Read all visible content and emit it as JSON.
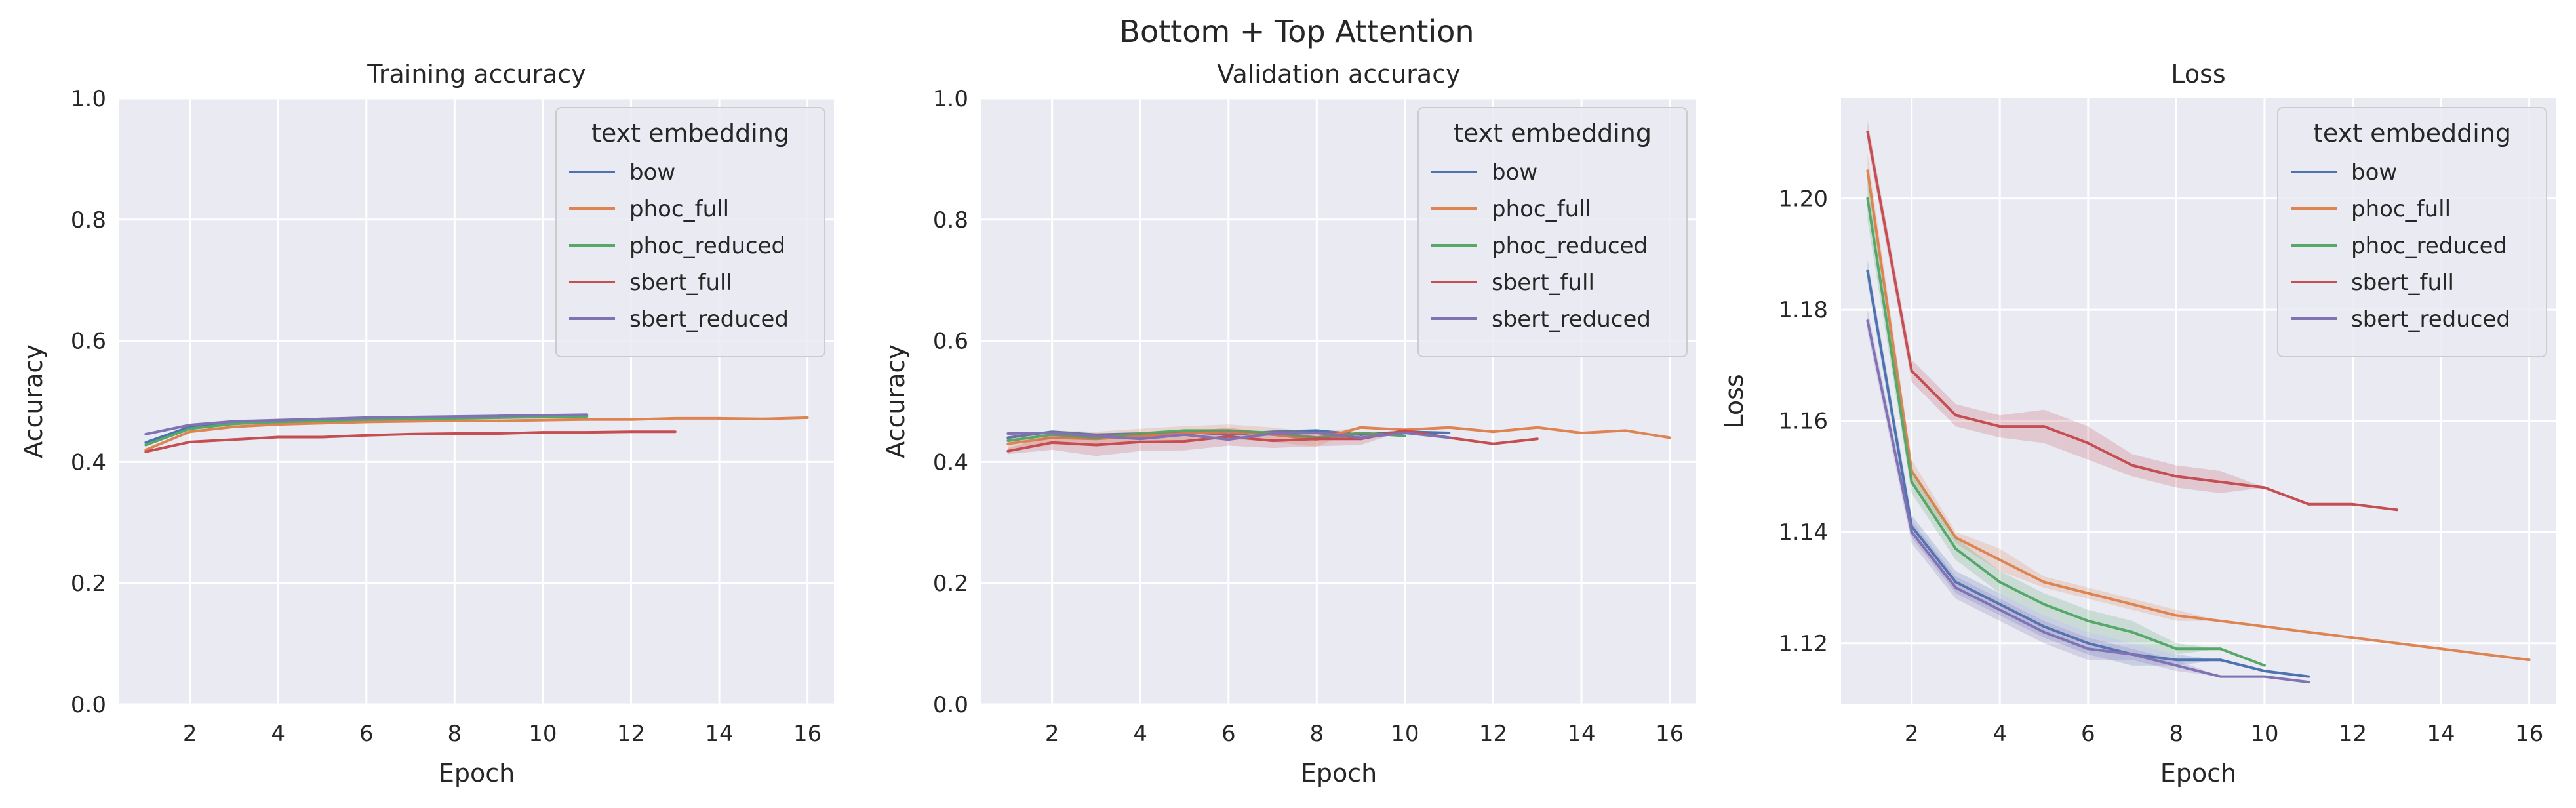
{
  "figure": {
    "suptitle": "Bottom + Top Attention"
  },
  "colors": {
    "bow": "#4c72b0",
    "phoc_full": "#dd8452",
    "phoc_reduced": "#55a868",
    "sbert_full": "#c44e52",
    "sbert_reduced": "#8172b3",
    "panel_bg": "#eaeaf2",
    "grid": "#ffffff"
  },
  "chart_data": [
    {
      "type": "line",
      "title": "Training accuracy",
      "xlabel": "Epoch",
      "ylabel": "Accuracy",
      "xlim": [
        0.4,
        16.6
      ],
      "ylim": [
        0.0,
        1.0
      ],
      "xticks": [
        2,
        4,
        6,
        8,
        10,
        12,
        14,
        16
      ],
      "yticks": [
        0.0,
        0.2,
        0.4,
        0.6,
        0.8,
        1.0
      ],
      "grid": true,
      "legend": {
        "title": "text embedding",
        "placement": "upper right"
      },
      "series": [
        {
          "name": "bow",
          "x": [
            1,
            2,
            3,
            4,
            5,
            6,
            7,
            8,
            9,
            10,
            11
          ],
          "y": [
            0.432,
            0.458,
            0.466,
            0.468,
            0.47,
            0.472,
            0.473,
            0.474,
            0.475,
            0.476,
            0.476
          ]
        },
        {
          "name": "phoc_full",
          "x": [
            1,
            2,
            3,
            4,
            5,
            6,
            7,
            8,
            9,
            10,
            11,
            12,
            13,
            14,
            15,
            16
          ],
          "y": [
            0.42,
            0.45,
            0.458,
            0.462,
            0.464,
            0.466,
            0.467,
            0.468,
            0.468,
            0.469,
            0.47,
            0.47,
            0.472,
            0.472,
            0.471,
            0.473
          ]
        },
        {
          "name": "phoc_reduced",
          "x": [
            1,
            2,
            3,
            4,
            5,
            6,
            7,
            8,
            9,
            10,
            11
          ],
          "y": [
            0.428,
            0.455,
            0.463,
            0.466,
            0.468,
            0.47,
            0.471,
            0.472,
            0.473,
            0.474,
            0.475
          ]
        },
        {
          "name": "sbert_full",
          "x": [
            1,
            2,
            3,
            4,
            5,
            6,
            7,
            8,
            9,
            10,
            11,
            12,
            13
          ],
          "y": [
            0.417,
            0.433,
            0.437,
            0.441,
            0.441,
            0.444,
            0.446,
            0.447,
            0.447,
            0.449,
            0.449,
            0.45,
            0.45
          ]
        },
        {
          "name": "sbert_reduced",
          "x": [
            1,
            2,
            3,
            4,
            5,
            6,
            7,
            8,
            9,
            10,
            11
          ],
          "y": [
            0.446,
            0.461,
            0.467,
            0.469,
            0.471,
            0.473,
            0.474,
            0.475,
            0.476,
            0.477,
            0.478
          ]
        }
      ]
    },
    {
      "type": "line",
      "title": "Validation accuracy",
      "xlabel": "Epoch",
      "ylabel": "Accuracy",
      "xlim": [
        0.4,
        16.6
      ],
      "ylim": [
        0.0,
        1.0
      ],
      "xticks": [
        2,
        4,
        6,
        8,
        10,
        12,
        14,
        16
      ],
      "yticks": [
        0.0,
        0.2,
        0.4,
        0.6,
        0.8,
        1.0
      ],
      "grid": true,
      "legend": {
        "title": "text embedding",
        "placement": "upper right"
      },
      "series": [
        {
          "name": "bow",
          "x": [
            1,
            2,
            3,
            4,
            5,
            6,
            7,
            8,
            9,
            10,
            11
          ],
          "y": [
            0.44,
            0.45,
            0.445,
            0.447,
            0.45,
            0.445,
            0.45,
            0.452,
            0.445,
            0.45,
            0.448
          ]
        },
        {
          "name": "phoc_full",
          "x": [
            1,
            2,
            3,
            4,
            5,
            6,
            7,
            8,
            9,
            10,
            11,
            12,
            13,
            14,
            15,
            16
          ],
          "y": [
            0.43,
            0.44,
            0.438,
            0.443,
            0.447,
            0.45,
            0.445,
            0.437,
            0.457,
            0.453,
            0.457,
            0.45,
            0.457,
            0.448,
            0.452,
            0.44
          ],
          "band": [
            0.012,
            0.012,
            0.012,
            0.012,
            0.012,
            0.012,
            0.012,
            0.012,
            0,
            0,
            0,
            0,
            0,
            0,
            0,
            0
          ]
        },
        {
          "name": "phoc_reduced",
          "x": [
            1,
            2,
            3,
            4,
            5,
            6,
            7,
            8,
            9,
            10
          ],
          "y": [
            0.435,
            0.445,
            0.44,
            0.447,
            0.452,
            0.452,
            0.448,
            0.44,
            0.448,
            0.443
          ]
        },
        {
          "name": "sbert_full",
          "x": [
            1,
            2,
            3,
            4,
            5,
            6,
            7,
            8,
            9,
            10,
            11,
            12,
            13
          ],
          "y": [
            0.418,
            0.432,
            0.428,
            0.433,
            0.434,
            0.442,
            0.435,
            0.438,
            0.438,
            0.452,
            0.44,
            0.43,
            0.438
          ],
          "band": [
            0.005,
            0.012,
            0.018,
            0.015,
            0.015,
            0.015,
            0.012,
            0.012,
            0.01,
            0,
            0,
            0,
            0
          ]
        },
        {
          "name": "sbert_reduced",
          "x": [
            1,
            2,
            3,
            4,
            5,
            6,
            7,
            8,
            9,
            10,
            11
          ],
          "y": [
            0.447,
            0.448,
            0.443,
            0.438,
            0.445,
            0.437,
            0.447,
            0.448,
            0.44,
            0.448,
            0.44
          ]
        }
      ]
    },
    {
      "type": "line",
      "title": "Loss",
      "xlabel": "Epoch",
      "ylabel": "Loss",
      "xlim": [
        0.4,
        16.6
      ],
      "ylim": [
        1.109,
        1.218
      ],
      "xticks": [
        2,
        4,
        6,
        8,
        10,
        12,
        14,
        16
      ],
      "yticks": [
        1.12,
        1.14,
        1.16,
        1.18,
        1.2
      ],
      "grid": true,
      "legend": {
        "title": "text embedding",
        "placement": "upper right"
      },
      "series": [
        {
          "name": "bow",
          "x": [
            1,
            2,
            3,
            4,
            5,
            6,
            7,
            8,
            9,
            10,
            11
          ],
          "y": [
            1.187,
            1.141,
            1.131,
            1.127,
            1.123,
            1.12,
            1.118,
            1.117,
            1.117,
            1.115,
            1.114
          ],
          "band": [
            0.002,
            0.002,
            0.002,
            0.002,
            0.002,
            0.002,
            0.002,
            0.001,
            0,
            0,
            0
          ]
        },
        {
          "name": "phoc_full",
          "x": [
            1,
            2,
            3,
            4,
            5,
            6,
            7,
            8,
            9,
            10,
            11,
            12,
            13,
            14,
            15,
            16
          ],
          "y": [
            1.205,
            1.151,
            1.139,
            1.135,
            1.131,
            1.129,
            1.127,
            1.125,
            1.124,
            1.123,
            1.122,
            1.121,
            1.12,
            1.119,
            1.118,
            1.117
          ],
          "band": [
            0.003,
            0.002,
            0.001,
            0.002,
            0.001,
            0.001,
            0.001,
            0.001,
            0,
            0,
            0,
            0,
            0,
            0,
            0,
            0
          ]
        },
        {
          "name": "phoc_reduced",
          "x": [
            1,
            2,
            3,
            4,
            5,
            6,
            7,
            8,
            9,
            10
          ],
          "y": [
            1.2,
            1.149,
            1.137,
            1.131,
            1.127,
            1.124,
            1.122,
            1.119,
            1.119,
            1.116
          ],
          "band": [
            0.004,
            0.002,
            0.002,
            0.002,
            0.002,
            0.002,
            0.002,
            0.001,
            0,
            0
          ]
        },
        {
          "name": "sbert_full",
          "x": [
            1,
            2,
            3,
            4,
            5,
            6,
            7,
            8,
            9,
            10,
            11,
            12,
            13
          ],
          "y": [
            1.212,
            1.169,
            1.161,
            1.159,
            1.159,
            1.156,
            1.152,
            1.15,
            1.149,
            1.148,
            1.145,
            1.145,
            1.144
          ],
          "band": [
            0.002,
            0.002,
            0.002,
            0.002,
            0.003,
            0.003,
            0.002,
            0.002,
            0.002,
            0,
            0,
            0,
            0
          ]
        },
        {
          "name": "sbert_reduced",
          "x": [
            1,
            2,
            3,
            4,
            5,
            6,
            7,
            8,
            9,
            10,
            11
          ],
          "y": [
            1.178,
            1.14,
            1.13,
            1.126,
            1.122,
            1.119,
            1.118,
            1.116,
            1.114,
            1.114,
            1.113
          ],
          "band": [
            0.002,
            0.002,
            0.002,
            0.002,
            0.002,
            0.002,
            0.001,
            0.001,
            0,
            0,
            0
          ]
        }
      ]
    }
  ]
}
